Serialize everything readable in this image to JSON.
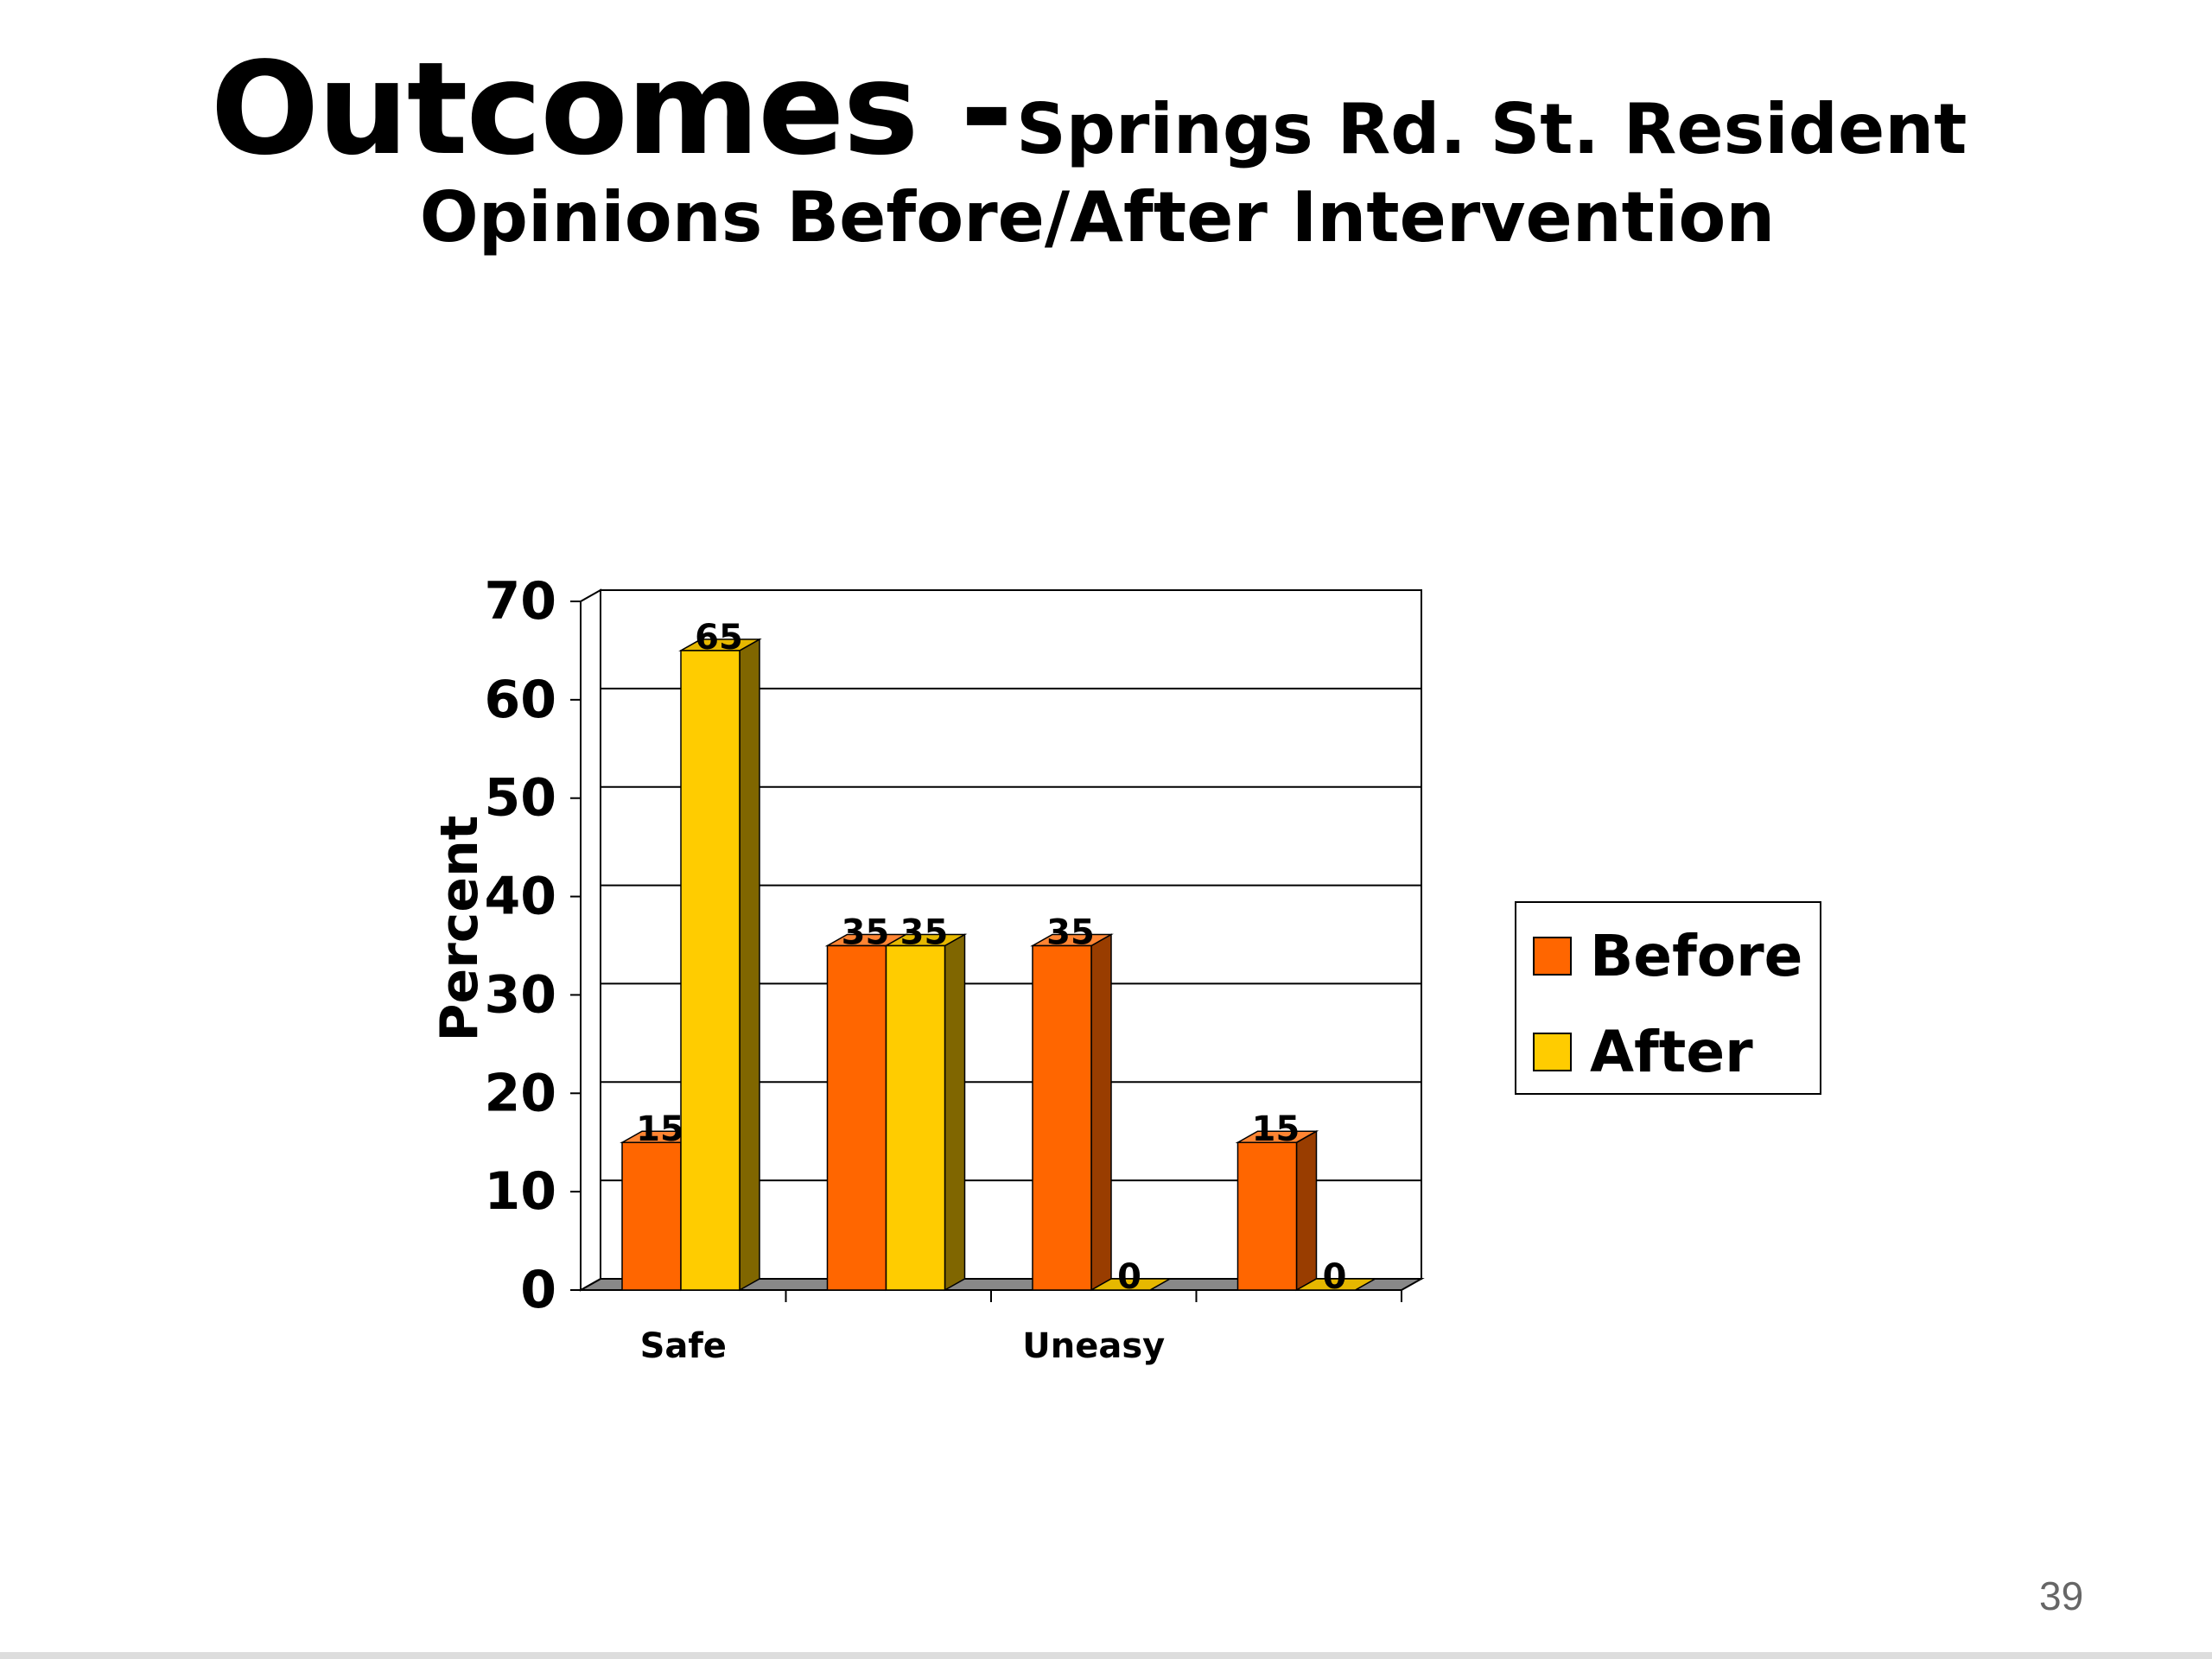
{
  "chart_data": {
    "type": "bar",
    "title": "Outcomes -",
    "subtitle": [
      "Springs Rd. St. Resident",
      "Opinions Before/After Intervention"
    ],
    "y_label": "Percent",
    "categories": [
      "Safe",
      null,
      "Uneasy",
      null
    ],
    "series": [
      {
        "name": "Before",
        "color": "#ff6600",
        "values": [
          15,
          35,
          35,
          15
        ]
      },
      {
        "name": "After",
        "color": "#ffcc00",
        "values": [
          65,
          35,
          0,
          0
        ]
      }
    ],
    "ylim": [
      0,
      70
    ],
    "yticks": [
      0,
      10,
      20,
      30,
      40,
      50,
      60,
      70
    ],
    "grid": true,
    "legend": "right"
  },
  "page_number": "39"
}
